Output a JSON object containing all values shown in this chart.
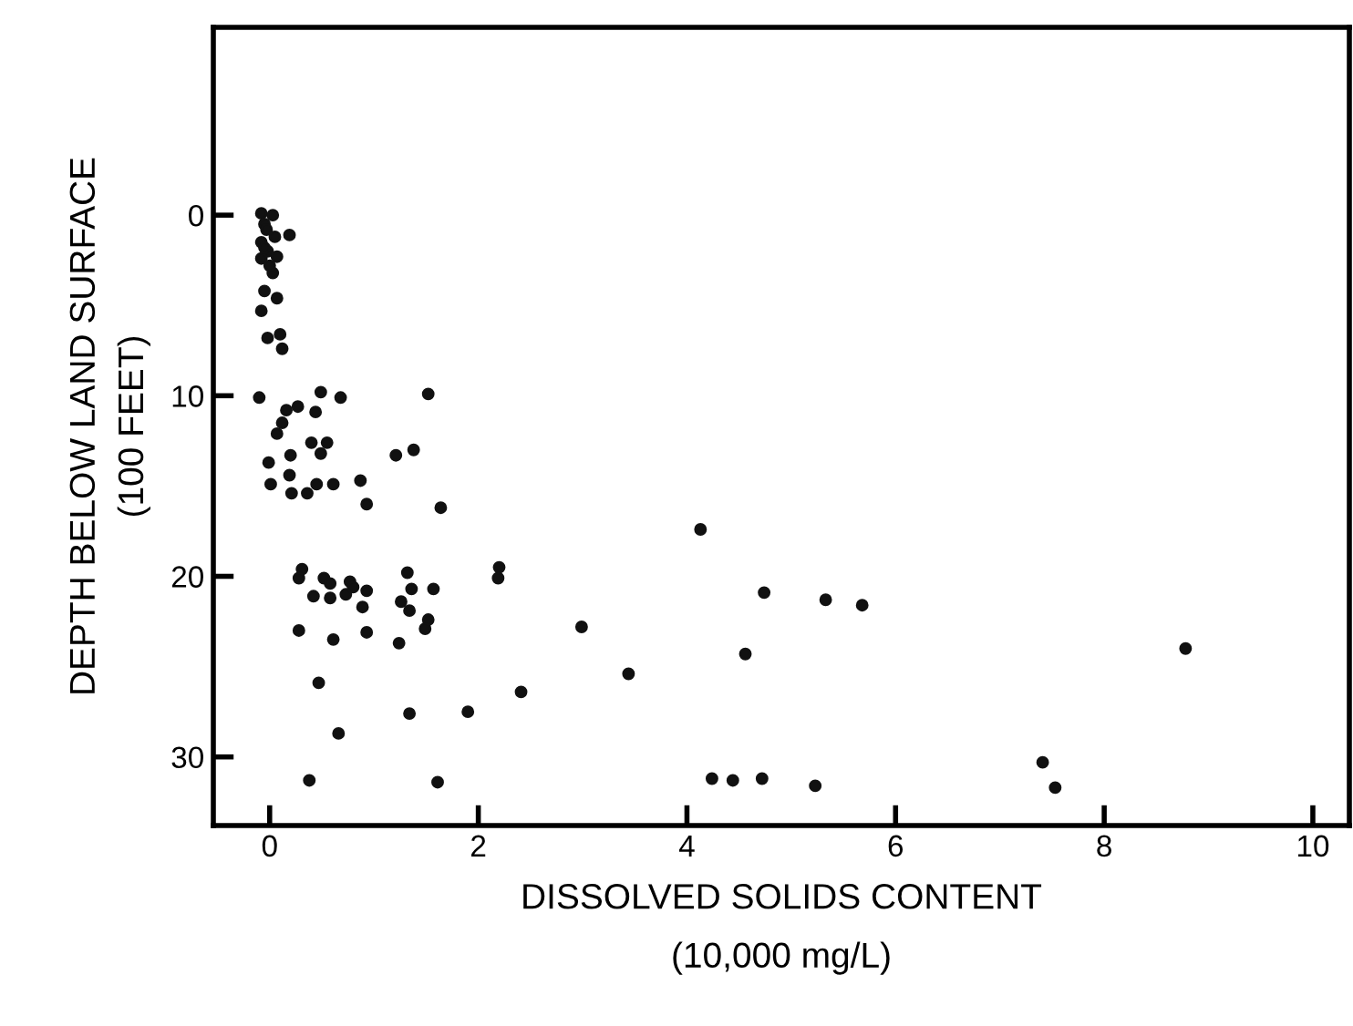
{
  "chart_data": {
    "type": "scatter",
    "xlabel": "DISSOLVED SOLIDS CONTENT\n(10,000 mg/L)",
    "ylabel": "DEPTH BELOW LAND SURFACE\n(100 FEET)",
    "x": [
      -0.08,
      0.03,
      -0.05,
      0.19,
      -0.08,
      -0.02,
      -0.08,
      0.03,
      -0.05,
      0.07,
      -0.08,
      -0.02,
      0.1,
      0.12,
      -0.03,
      0.05,
      -0.05,
      0.07,
      0.0,
      -0.1,
      0.49,
      0.68,
      1.52,
      0.16,
      0.27,
      0.44,
      0.12,
      0.07,
      0.4,
      0.55,
      0.49,
      0.2,
      -0.01,
      1.21,
      1.38,
      0.01,
      0.19,
      0.21,
      0.36,
      0.45,
      0.61,
      0.87,
      0.93,
      1.64,
      0.31,
      0.28,
      0.52,
      0.58,
      0.77,
      0.8,
      0.42,
      0.58,
      0.73,
      0.93,
      0.89,
      1.32,
      1.36,
      1.57,
      1.26,
      1.34,
      1.52,
      1.49,
      2.2,
      2.19,
      0.28,
      0.61,
      0.93,
      1.24,
      0.47,
      2.41,
      1.34,
      1.9,
      0.66,
      0.38,
      1.61,
      4.13,
      2.99,
      3.44,
      4.74,
      5.33,
      5.68,
      4.56,
      4.24,
      4.44,
      4.72,
      5.23,
      8.78,
      7.41,
      7.53
    ],
    "values": [
      -0.1,
      0,
      0.5,
      1.1,
      1.5,
      2.0,
      2.4,
      3.2,
      4.2,
      4.6,
      5.3,
      6.8,
      6.6,
      7.4,
      0.8,
      1.2,
      1.8,
      2.3,
      2.8,
      10.1,
      9.8,
      10.1,
      9.9,
      10.8,
      10.6,
      10.9,
      11.5,
      12.1,
      12.6,
      12.6,
      13.2,
      13.3,
      13.7,
      13.3,
      13.0,
      14.9,
      14.4,
      15.4,
      15.4,
      14.9,
      14.9,
      14.7,
      16.0,
      16.2,
      19.6,
      20.1,
      20.1,
      20.4,
      20.3,
      20.6,
      21.1,
      21.2,
      21.0,
      20.8,
      21.7,
      19.8,
      20.7,
      20.7,
      21.4,
      21.9,
      22.4,
      22.9,
      19.5,
      20.1,
      23.0,
      23.5,
      23.1,
      23.7,
      25.9,
      26.4,
      27.6,
      27.5,
      28.7,
      31.3,
      31.4,
      17.4,
      22.8,
      25.4,
      20.9,
      21.3,
      21.6,
      24.3,
      31.2,
      31.3,
      31.2,
      31.6,
      24.0,
      30.3,
      31.7
    ],
    "color": "#111111",
    "marker": "circle",
    "xlim": [
      -0.54,
      10.35
    ],
    "ylim": [
      33.8,
      -10.4
    ],
    "xticks": [
      0,
      2,
      4,
      6,
      8,
      10
    ],
    "yticks": [
      0,
      10,
      20,
      30
    ],
    "grid": false,
    "legend": false
  }
}
